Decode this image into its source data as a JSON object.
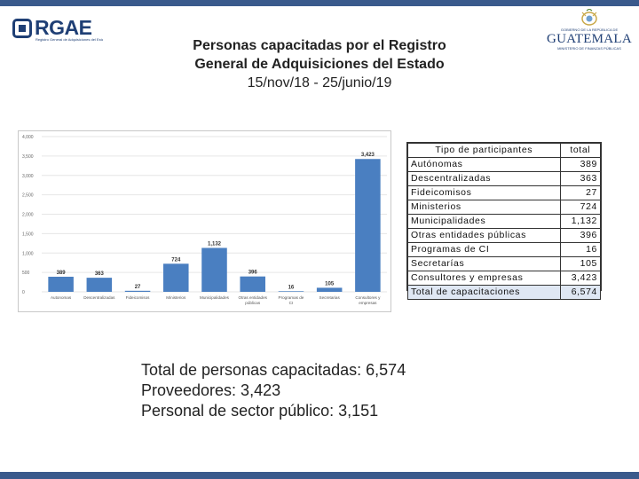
{
  "logo_left": {
    "name": "RGAE",
    "subtitle": "Registro General de Adquisiciones del Estado"
  },
  "logo_right": {
    "government": "GOBIERNO DE LA REPÚBLICA DE",
    "country": "GUATEMALA",
    "ministry": "MINISTERIO DE FINANZAS PÚBLICAS"
  },
  "title": {
    "line1": "Personas capacitadas por el Registro",
    "line2": "General de Adquisiciones del Estado",
    "dates": "15/nov/18  -  25/junio/19"
  },
  "chart_data": {
    "type": "bar",
    "categories": [
      "Autonomas",
      "Descentralizadas",
      "Fideicomisos",
      "Ministerios",
      "Municipalidades",
      "Otras entidades públicas",
      "Programas de CI",
      "Secretarias",
      "Consultores y empresas"
    ],
    "values": [
      389,
      363,
      27,
      724,
      1132,
      396,
      16,
      105,
      3423
    ],
    "value_labels": [
      "389",
      "363",
      "27",
      "724",
      "1,132",
      "396",
      "16",
      "105",
      "3,423"
    ],
    "ylim": [
      0,
      4000
    ],
    "yticks": [
      0,
      500,
      1000,
      1500,
      2000,
      2500,
      3000,
      3500,
      4000
    ],
    "ytick_labels": [
      "0",
      "500",
      "1,000",
      "1,500",
      "2,000",
      "2,500",
      "3,000",
      "3,500",
      "4,000"
    ],
    "bar_color": "#4a7fc1",
    "title": "",
    "xlabel": "",
    "ylabel": ""
  },
  "table": {
    "headers": [
      "Tipo de participantes",
      "total"
    ],
    "rows": [
      [
        "Autónomas",
        "389"
      ],
      [
        "Descentralizadas",
        "363"
      ],
      [
        "Fideicomisos",
        "27"
      ],
      [
        "Ministerios",
        "724"
      ],
      [
        "Municipalidades",
        "1,132"
      ],
      [
        "Otras entidades públicas",
        "396"
      ],
      [
        "Programas de CI",
        "16"
      ],
      [
        "Secretarías",
        "105"
      ],
      [
        "Consultores y empresas",
        "3,423"
      ]
    ],
    "total_row": [
      "Total de capacitaciones",
      "6,574"
    ]
  },
  "summary": {
    "line1": "Total de personas capacitadas: 6,574",
    "line2": "Proveedores: 3,423",
    "line3": "Personal de sector público: 3,151"
  },
  "colors": {
    "accent": "#3a5a8c",
    "brand": "#1f3f75",
    "total_row_bg": "#dfe7f3"
  }
}
